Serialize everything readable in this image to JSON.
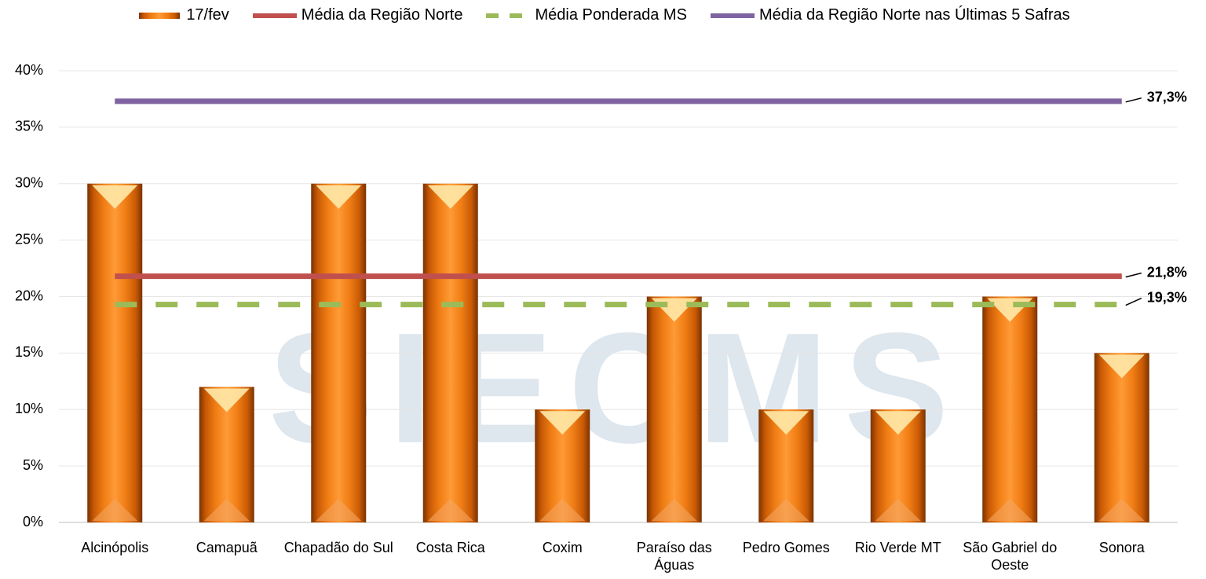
{
  "chart_data": {
    "type": "bar",
    "watermark": "SIECMS",
    "categories": [
      "Alcinópolis",
      "Camapuã",
      "Chapadão do Sul",
      "Costa Rica",
      "Coxim",
      "Paraíso das Águas",
      "Pedro Gomes",
      "Rio Verde MT",
      "São Gabriel do Oeste",
      "Sonora"
    ],
    "series": [
      {
        "name": "17/fev",
        "type": "bar",
        "color": "#e36c09",
        "values": [
          30,
          12,
          30,
          30,
          10,
          20,
          10,
          10,
          20,
          15
        ]
      },
      {
        "name": "Média da Região Norte",
        "type": "line",
        "color": "#c0504d",
        "dashed": false,
        "values": [
          21.8,
          21.8,
          21.8,
          21.8,
          21.8,
          21.8,
          21.8,
          21.8,
          21.8,
          21.8
        ],
        "value_labels": [
          null,
          null,
          null,
          null,
          null,
          null,
          null,
          null,
          null,
          "21,8%"
        ]
      },
      {
        "name": "Média Ponderada MS",
        "type": "line",
        "color": "#9bbb59",
        "dashed": true,
        "values": [
          19.3,
          19.3,
          19.3,
          19.3,
          19.3,
          19.3,
          19.3,
          19.3,
          19.3,
          19.3
        ],
        "value_labels": [
          null,
          null,
          null,
          null,
          null,
          null,
          null,
          null,
          null,
          "19,3%"
        ]
      },
      {
        "name": "Média da Região Norte nas Últimas 5 Safras",
        "type": "line",
        "color": "#8064a2",
        "dashed": false,
        "values": [
          37.3,
          37.3,
          37.3,
          37.3,
          37.3,
          37.3,
          37.3,
          37.3,
          37.3,
          37.3
        ],
        "value_labels": [
          null,
          null,
          null,
          null,
          null,
          null,
          null,
          null,
          null,
          "37,3%"
        ]
      }
    ],
    "ylim": [
      0,
      40
    ],
    "yticks": [
      {
        "value": 0,
        "label": "0%"
      },
      {
        "value": 5,
        "label": "5%"
      },
      {
        "value": 10,
        "label": "10%"
      },
      {
        "value": 15,
        "label": "15%"
      },
      {
        "value": 20,
        "label": "20%"
      },
      {
        "value": 25,
        "label": "25%"
      },
      {
        "value": 30,
        "label": "30%"
      },
      {
        "value": 35,
        "label": "35%"
      },
      {
        "value": 40,
        "label": "40%"
      }
    ],
    "grid": true
  }
}
